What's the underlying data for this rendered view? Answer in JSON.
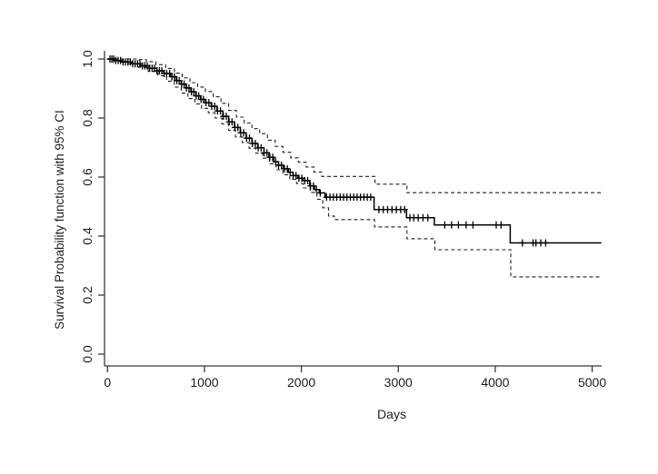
{
  "figure": {
    "background": "#ffffff",
    "curve_color": "#000000",
    "axis_color": "#383838"
  },
  "chart_data": {
    "type": "line",
    "subtype": "kaplan-meier-step-with-ci",
    "title": "",
    "xlabel": "Days",
    "ylabel": "Survival Probability function with 95% CI",
    "x_ticks": [
      0,
      1000,
      2000,
      3000,
      4000,
      5000
    ],
    "y_ticks": [
      0.0,
      0.2,
      0.4,
      0.6,
      0.8,
      1.0
    ],
    "y_tick_decimals": 1,
    "xlim": [
      -31,
      5098
    ],
    "ylim": [
      -0.04,
      1.04
    ],
    "x_data_end": 5095,
    "grid": false,
    "legend_position": "none",
    "series": [
      {
        "name": "survival-estimate",
        "style": "solid",
        "points": [
          [
            0,
            1.0
          ],
          [
            80,
            0.995
          ],
          [
            160,
            0.99
          ],
          [
            250,
            0.984
          ],
          [
            340,
            0.977
          ],
          [
            430,
            0.969
          ],
          [
            510,
            0.96
          ],
          [
            580,
            0.951
          ],
          [
            650,
            0.94
          ],
          [
            710,
            0.927
          ],
          [
            760,
            0.915
          ],
          [
            810,
            0.902
          ],
          [
            860,
            0.889
          ],
          [
            910,
            0.875
          ],
          [
            960,
            0.863
          ],
          [
            1010,
            0.852
          ],
          [
            1070,
            0.84
          ],
          [
            1130,
            0.824
          ],
          [
            1190,
            0.806
          ],
          [
            1250,
            0.787
          ],
          [
            1310,
            0.768
          ],
          [
            1370,
            0.75
          ],
          [
            1430,
            0.732
          ],
          [
            1490,
            0.714
          ],
          [
            1550,
            0.699
          ],
          [
            1615,
            0.682
          ],
          [
            1665,
            0.667
          ],
          [
            1715,
            0.652
          ],
          [
            1765,
            0.64
          ],
          [
            1815,
            0.628
          ],
          [
            1865,
            0.616
          ],
          [
            1915,
            0.605
          ],
          [
            1965,
            0.596
          ],
          [
            2015,
            0.588
          ],
          [
            2085,
            0.57
          ],
          [
            2135,
            0.558
          ],
          [
            2185,
            0.546
          ],
          [
            2245,
            0.532
          ],
          [
            2750,
            0.49
          ],
          [
            3085,
            0.462
          ],
          [
            3372,
            0.438
          ],
          [
            4155,
            0.377
          ]
        ]
      },
      {
        "name": "upper-95-ci",
        "style": "dashed",
        "points": [
          [
            0,
            1.0
          ],
          [
            300,
            0.998
          ],
          [
            400,
            0.991
          ],
          [
            500,
            0.981
          ],
          [
            600,
            0.968
          ],
          [
            690,
            0.952
          ],
          [
            770,
            0.936
          ],
          [
            850,
            0.92
          ],
          [
            930,
            0.905
          ],
          [
            1010,
            0.89
          ],
          [
            1090,
            0.872
          ],
          [
            1170,
            0.85
          ],
          [
            1250,
            0.826
          ],
          [
            1330,
            0.803
          ],
          [
            1410,
            0.783
          ],
          [
            1490,
            0.764
          ],
          [
            1570,
            0.747
          ],
          [
            1650,
            0.725
          ],
          [
            1730,
            0.704
          ],
          [
            1810,
            0.684
          ],
          [
            1890,
            0.665
          ],
          [
            1970,
            0.65
          ],
          [
            2050,
            0.634
          ],
          [
            2130,
            0.617
          ],
          [
            2210,
            0.602
          ],
          [
            2760,
            0.576
          ],
          [
            3090,
            0.547
          ]
        ]
      },
      {
        "name": "lower-95-ci",
        "style": "dashed",
        "points": [
          [
            0,
            1.0
          ],
          [
            120,
            0.992
          ],
          [
            220,
            0.984
          ],
          [
            320,
            0.972
          ],
          [
            420,
            0.958
          ],
          [
            520,
            0.943
          ],
          [
            610,
            0.925
          ],
          [
            690,
            0.905
          ],
          [
            760,
            0.885
          ],
          [
            830,
            0.866
          ],
          [
            900,
            0.848
          ],
          [
            970,
            0.833
          ],
          [
            1040,
            0.818
          ],
          [
            1110,
            0.8
          ],
          [
            1180,
            0.78
          ],
          [
            1250,
            0.758
          ],
          [
            1320,
            0.736
          ],
          [
            1390,
            0.717
          ],
          [
            1460,
            0.698
          ],
          [
            1530,
            0.681
          ],
          [
            1600,
            0.664
          ],
          [
            1670,
            0.645
          ],
          [
            1740,
            0.625
          ],
          [
            1810,
            0.608
          ],
          [
            1880,
            0.592
          ],
          [
            1950,
            0.578
          ],
          [
            2020,
            0.563
          ],
          [
            2090,
            0.548
          ],
          [
            2160,
            0.525
          ],
          [
            2220,
            0.496
          ],
          [
            2280,
            0.468
          ],
          [
            2340,
            0.456
          ],
          [
            2755,
            0.431
          ],
          [
            3090,
            0.391
          ],
          [
            3377,
            0.354
          ],
          [
            4160,
            0.262
          ]
        ]
      }
    ],
    "censor_mark_days": [
      25,
      45,
      65,
      85,
      110,
      135,
      160,
      185,
      210,
      235,
      260,
      285,
      310,
      335,
      360,
      385,
      410,
      435,
      460,
      485,
      510,
      535,
      560,
      585,
      610,
      640,
      665,
      690,
      715,
      740,
      765,
      790,
      815,
      840,
      865,
      890,
      915,
      940,
      965,
      990,
      1015,
      1045,
      1075,
      1105,
      1135,
      1165,
      1195,
      1225,
      1255,
      1285,
      1315,
      1345,
      1375,
      1405,
      1435,
      1465,
      1495,
      1525,
      1555,
      1585,
      1615,
      1645,
      1675,
      1705,
      1735,
      1765,
      1795,
      1825,
      1855,
      1885,
      1915,
      1945,
      1975,
      2005,
      2035,
      2065,
      2095,
      2125,
      2155,
      2195,
      2260,
      2295,
      2330,
      2365,
      2400,
      2435,
      2470,
      2505,
      2540,
      2575,
      2610,
      2645,
      2680,
      2715,
      2800,
      2845,
      2890,
      2935,
      2980,
      3025,
      3065,
      3120,
      3160,
      3205,
      3255,
      3305,
      3480,
      3550,
      3620,
      3700,
      3770,
      4010,
      4060,
      4280,
      4390,
      4420,
      4470,
      4520
    ]
  }
}
